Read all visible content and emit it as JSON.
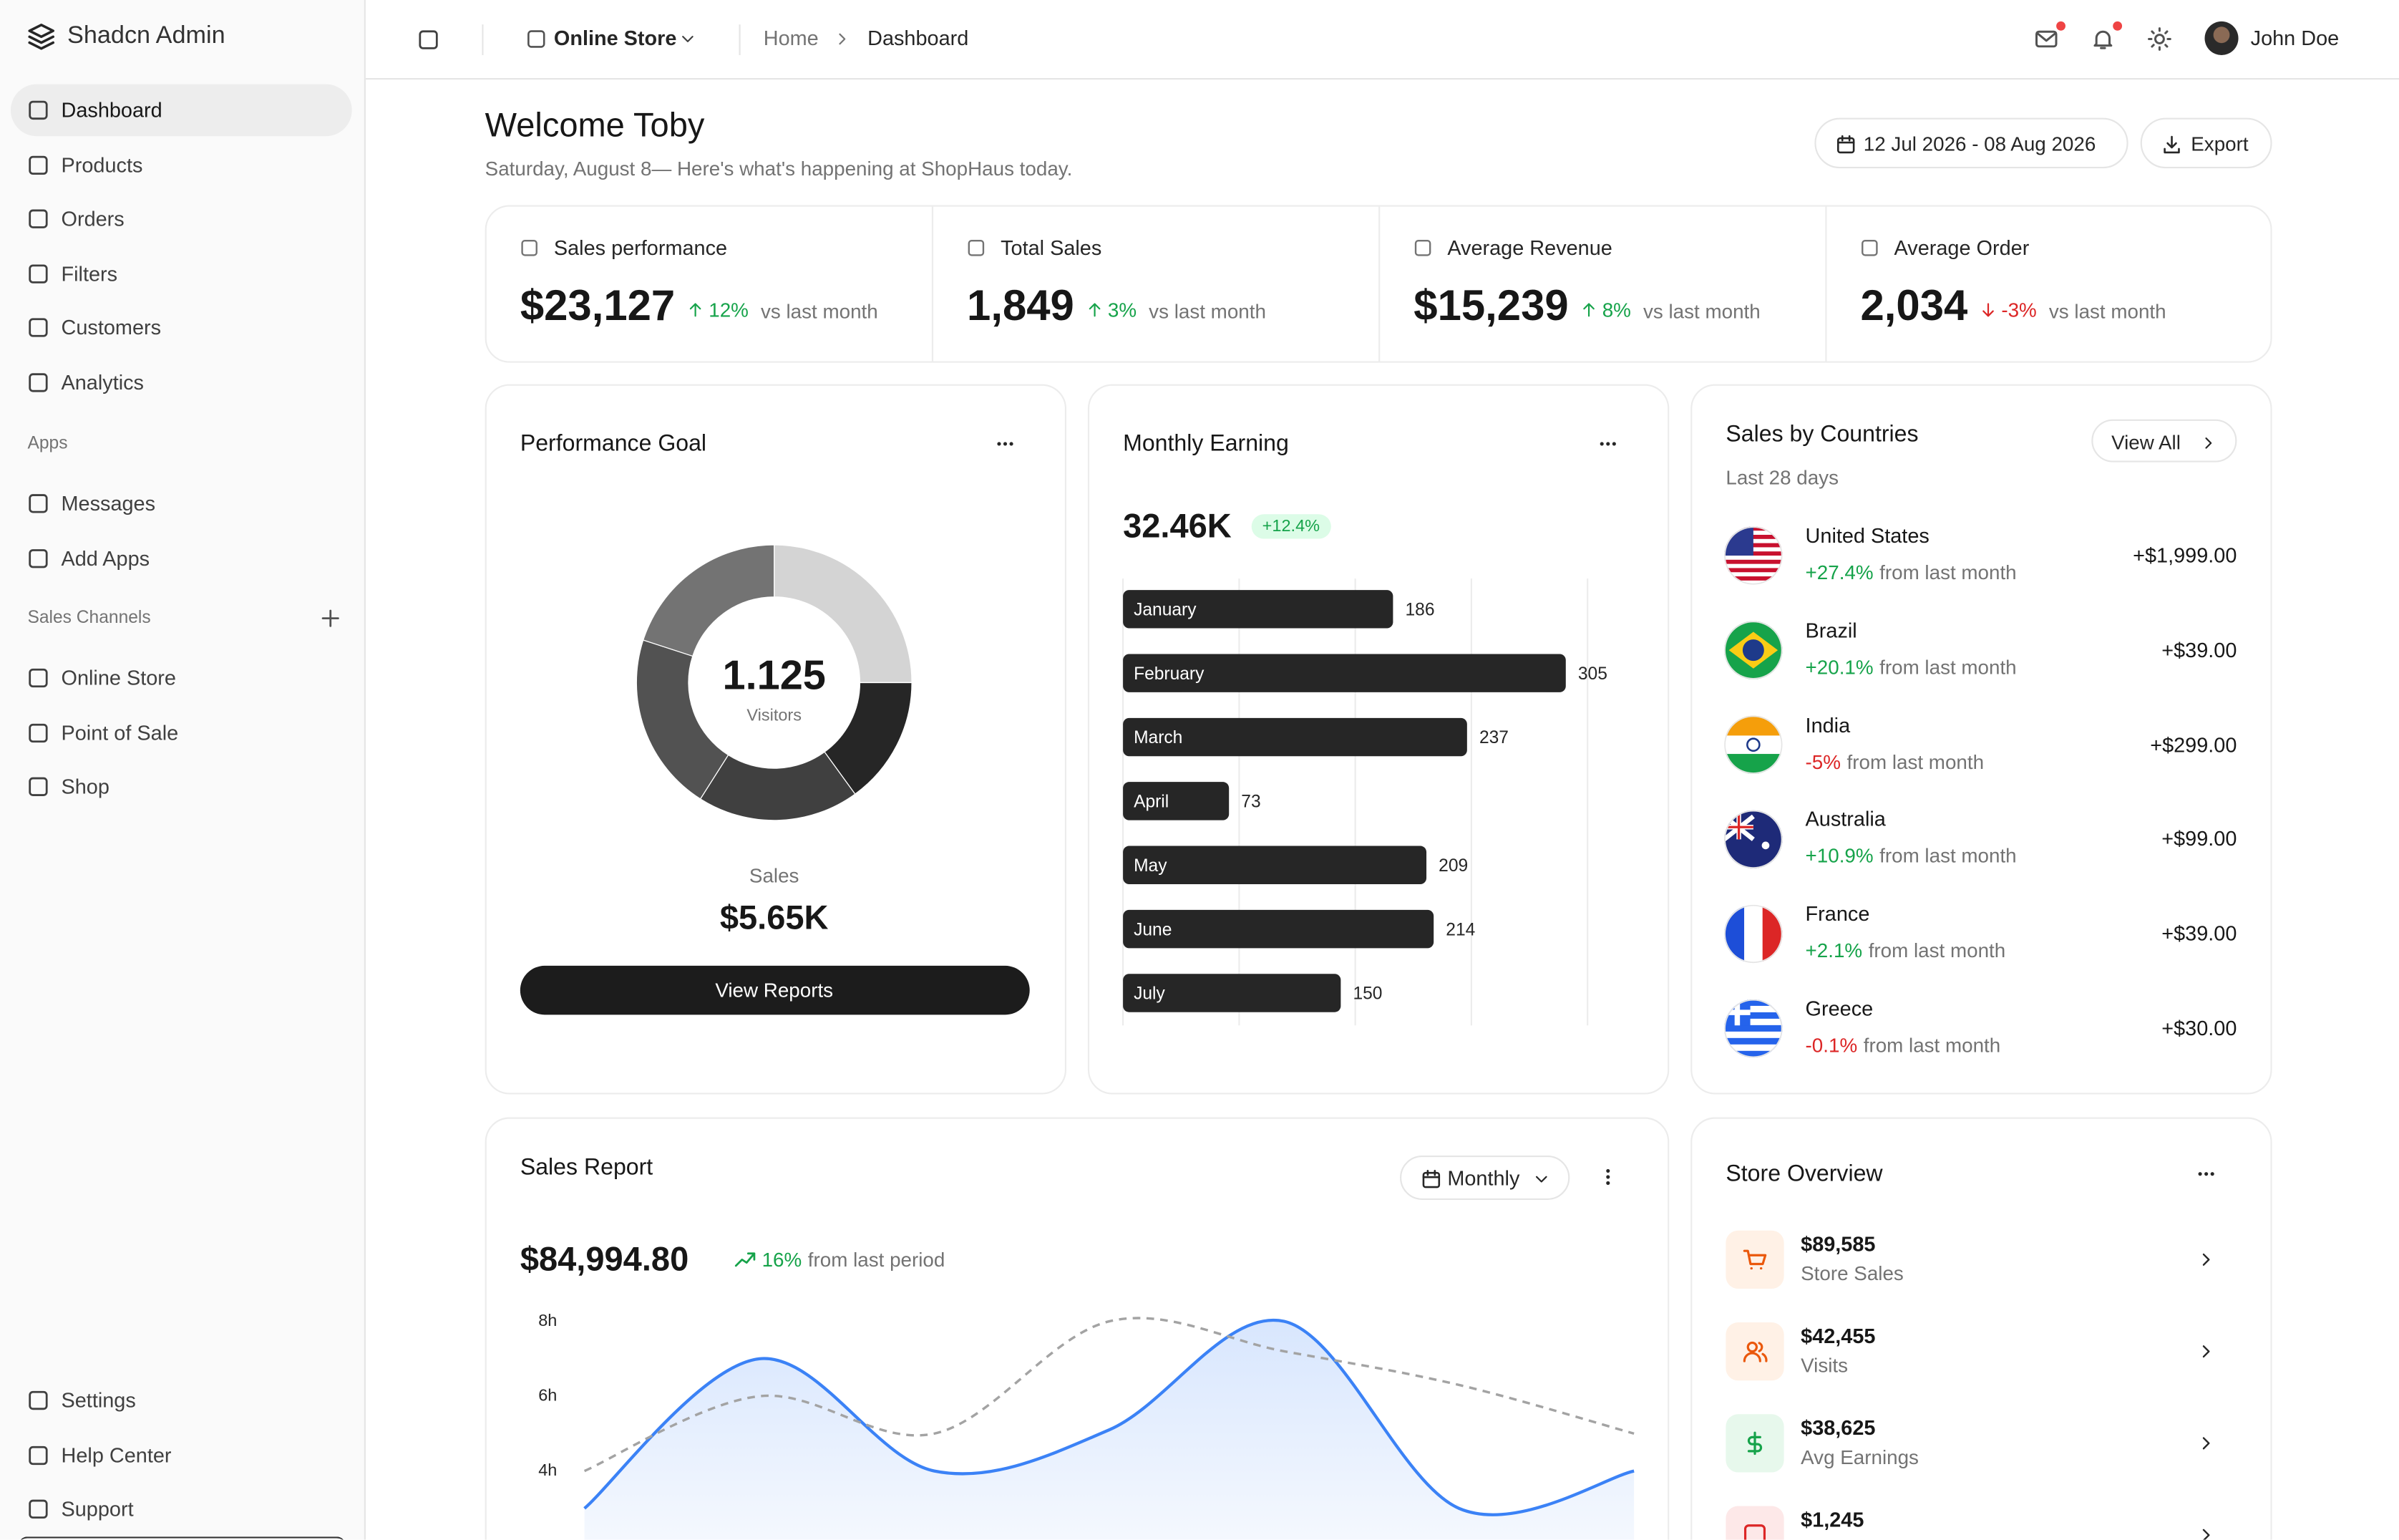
{
  "sidebar": {
    "brand": "Shadcn Admin",
    "nav": [
      "Dashboard",
      "Products",
      "Orders",
      "Filters",
      "Customers",
      "Analytics"
    ],
    "apps_label": "Apps",
    "apps": [
      "Messages",
      "Add Apps"
    ],
    "channels_label": "Sales Channels",
    "channels": [
      "Online Store",
      "Point of Sale",
      "Shop"
    ],
    "footer": [
      "Settings",
      "Help Center",
      "Support"
    ]
  },
  "header": {
    "store": "Online Store",
    "breadcrumb": [
      "Home",
      "Dashboard"
    ],
    "user": "John Doe"
  },
  "welcome": {
    "title": "Welcome Toby",
    "subtitle": "Saturday, August 8— Here's what's happening at ShopHaus today.",
    "date_range": "12 Jul 2026 - 08 Aug 2026",
    "export": "Export"
  },
  "stats": [
    {
      "label": "Sales performance",
      "value": "$23,127",
      "change": "12%",
      "direction": "up",
      "note": "vs last month"
    },
    {
      "label": "Total Sales",
      "value": "1,849",
      "change": "3%",
      "direction": "up",
      "note": "vs last month"
    },
    {
      "label": "Average Revenue",
      "value": "$15,239",
      "change": "8%",
      "direction": "up",
      "note": "vs last month"
    },
    {
      "label": "Average Order",
      "value": "2,034",
      "change": "-3%",
      "direction": "down",
      "note": "vs last month"
    }
  ],
  "performance_goal": {
    "title": "Performance Goal",
    "chart": {
      "type": "pie",
      "donut": true,
      "values": [
        25,
        15,
        19,
        21,
        20
      ],
      "colors": [
        "#d4d4d4",
        "#262626",
        "#404040",
        "#525252",
        "#737373"
      ]
    },
    "center_value": "1.125",
    "center_label": "Visitors",
    "sales_label": "Sales",
    "sales_value": "$5.65K",
    "button": "View Reports"
  },
  "monthly_earning": {
    "title": "Monthly Earning",
    "value": "32.46K",
    "change": "+12.4%",
    "chart": {
      "type": "bar",
      "orientation": "horizontal",
      "categories": [
        "January",
        "February",
        "March",
        "April",
        "May",
        "June",
        "July"
      ],
      "values": [
        186,
        305,
        237,
        73,
        209,
        214,
        150
      ],
      "color": "#262626",
      "xlim": [
        0,
        352
      ],
      "xticks": [
        0,
        80,
        160,
        240,
        320
      ],
      "grid": true
    }
  },
  "countries": {
    "title": "Sales by Countries",
    "subtitle": "Last 28 days",
    "button": "View All",
    "rows": [
      {
        "name": "United States",
        "change": "+27.4%",
        "direction": "up",
        "note": "from last month",
        "amount": "+$1,999.00"
      },
      {
        "name": "Brazil",
        "change": "+20.1%",
        "direction": "up",
        "note": "from last month",
        "amount": "+$39.00"
      },
      {
        "name": "India",
        "change": "-5%",
        "direction": "down",
        "note": "from last month",
        "amount": "+$299.00"
      },
      {
        "name": "Australia",
        "change": "+10.9%",
        "direction": "up",
        "note": "from last month",
        "amount": "+$99.00"
      },
      {
        "name": "France",
        "change": "+2.1%",
        "direction": "up",
        "note": "from last month",
        "amount": "+$39.00"
      },
      {
        "name": "Greece",
        "change": "-0.1%",
        "direction": "down",
        "note": "from last month",
        "amount": "+$30.00"
      }
    ]
  },
  "sales_report": {
    "title": "Sales Report",
    "period": "Monthly",
    "value": "$84,994.80",
    "change": "16%",
    "note": "from last period",
    "chart": {
      "type": "line",
      "categories": [
        null,
        null,
        null,
        null,
        null,
        null,
        null
      ],
      "series": [
        {
          "color": "#3b82f6",
          "fill": true,
          "dashed": false,
          "values": [
            3.0,
            7.0,
            4.0,
            5.1,
            8.0,
            3.0,
            4.0
          ]
        },
        {
          "color": "#a3a3a3",
          "fill": false,
          "dashed": true,
          "values": [
            4.0,
            6.0,
            5.0,
            8.0,
            7.2,
            6.3,
            5.0
          ]
        }
      ],
      "ylim": [
        2,
        8.3
      ],
      "yticks": [
        {
          "value": 4,
          "label": "4h"
        },
        {
          "value": 6,
          "label": "6h"
        },
        {
          "value": 8,
          "label": "8h"
        }
      ],
      "grid": false
    }
  },
  "store_overview": {
    "title": "Store Overview",
    "items": [
      {
        "value": "$89,585",
        "label": "Store Sales"
      },
      {
        "value": "$42,455",
        "label": "Visits"
      },
      {
        "value": "$38,625",
        "label": "Avg Earnings"
      },
      {
        "value": "$1,245"
      }
    ]
  }
}
